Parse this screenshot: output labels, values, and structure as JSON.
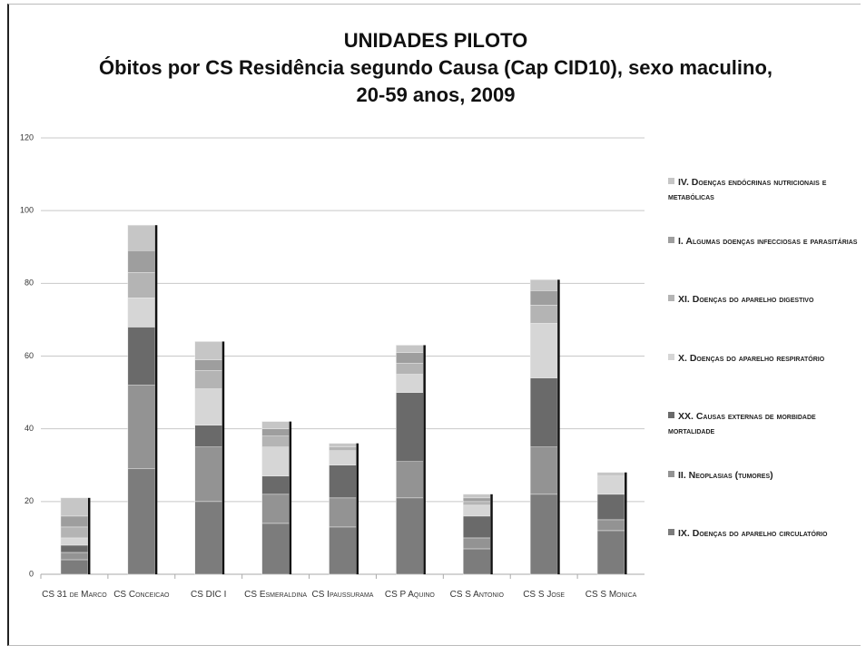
{
  "chart_data": {
    "type": "stacked_bar",
    "title": "UNIDADES PILOTO",
    "subtitle": "Óbitos por CS Residência segundo Causa (Cap CID10), sexo maculino, 20-59 anos, 2009",
    "categories": [
      "CS 31 de Marco",
      "CS Conceicao",
      "CS DIC I",
      "CS Esmeraldina",
      "CS Ipaussurama",
      "CS P Aquino",
      "CS S Antonio",
      "CS S Jose",
      "CS S Monica"
    ],
    "series": [
      {
        "name": "IX. Doenças do aparelho circulatório",
        "color": "#7c7c7c",
        "values": [
          4,
          29,
          20,
          14,
          13,
          21,
          7,
          22,
          12
        ]
      },
      {
        "name": "II. Neoplasias (tumores)",
        "color": "#939393",
        "values": [
          2,
          23,
          15,
          8,
          8,
          10,
          3,
          13,
          3
        ]
      },
      {
        "name": "XX. Causas externas de morbidade mortalidade",
        "color": "#6a6a6a",
        "values": [
          2,
          16,
          6,
          5,
          9,
          19,
          6,
          19,
          7
        ]
      },
      {
        "name": "X. Doenças do aparelho respiratório",
        "color": "#d6d6d6",
        "values": [
          2,
          8,
          10,
          8,
          4,
          5,
          3,
          15,
          5
        ]
      },
      {
        "name": "XI. Doenças do aparelho digestivo",
        "color": "#b4b4b4",
        "values": [
          3,
          7,
          5,
          3,
          1,
          3,
          1,
          5,
          0
        ]
      },
      {
        "name": "I. Algumas doenças infecciosas e parasitárias",
        "color": "#9e9e9e",
        "values": [
          3,
          6,
          3,
          2,
          0,
          3,
          1,
          4,
          0
        ]
      },
      {
        "name": "IV. Doenças endócrinas nutricionais e metabólicas",
        "color": "#c6c6c6",
        "values": [
          5,
          7,
          5,
          2,
          1,
          2,
          1,
          3,
          1
        ]
      }
    ],
    "ylim": [
      0,
      120
    ],
    "yticks": [
      0,
      20,
      40,
      60,
      80,
      100,
      120
    ],
    "grid": true,
    "legend": "right"
  }
}
